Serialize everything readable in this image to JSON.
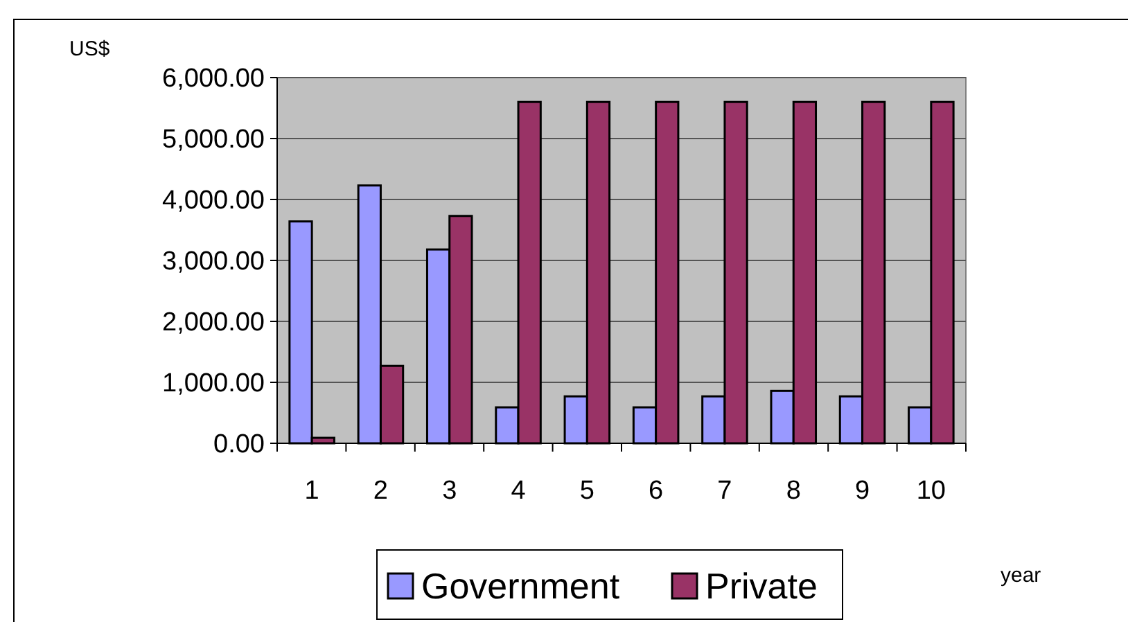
{
  "chart_data": {
    "type": "bar",
    "xlabel": "year",
    "ylabel": "US$",
    "categories": [
      "1",
      "2",
      "3",
      "4",
      "5",
      "6",
      "7",
      "8",
      "9",
      "10"
    ],
    "series": [
      {
        "name": "Government",
        "color": "#9999ff",
        "values": [
          3640,
          4230,
          3180,
          590,
          770,
          590,
          770,
          860,
          770,
          590
        ]
      },
      {
        "name": "Private",
        "color": "#993366",
        "values": [
          90,
          1270,
          3730,
          5600,
          5600,
          5600,
          5600,
          5600,
          5600,
          5600
        ]
      }
    ],
    "ylim": [
      0,
      6000
    ],
    "yticks": [
      {
        "value": 0,
        "label": "0.00"
      },
      {
        "value": 1000,
        "label": "1,000.00"
      },
      {
        "value": 2000,
        "label": "2,000.00"
      },
      {
        "value": 3000,
        "label": "3,000.00"
      },
      {
        "value": 4000,
        "label": "4,000.00"
      },
      {
        "value": 5000,
        "label": "5,000.00"
      },
      {
        "value": 6000,
        "label": "6,000.00"
      }
    ],
    "grid": "y",
    "legend": "bottom"
  }
}
